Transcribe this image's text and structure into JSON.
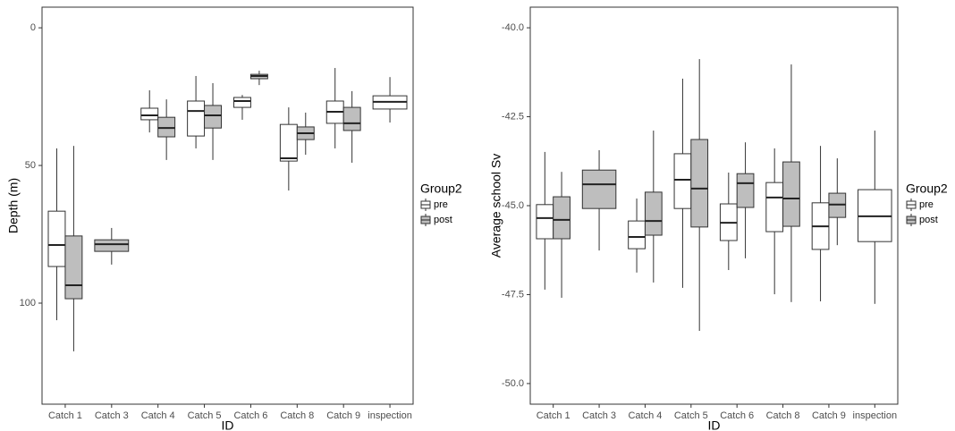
{
  "chart_data": [
    {
      "type": "box",
      "x_label": "ID",
      "y_label": "Depth (m)",
      "y_reversed": true,
      "categories": [
        "Catch 1",
        "Catch 3",
        "Catch 4",
        "Catch 5",
        "Catch 6",
        "Catch 8",
        "Catch 9",
        "inspection"
      ],
      "ylim": [
        -7.5,
        136.7
      ],
      "yticks": [
        0,
        50,
        100
      ],
      "legend_title": "Group2",
      "legend": "right",
      "series": [
        {
          "name": "pre",
          "color": "#ffffff",
          "values": [
            [
              43.8,
              66.6,
              78.9,
              86.7,
              106.2
            ],
            null,
            [
              22.7,
              29.2,
              31.8,
              33.4,
              38
            ],
            [
              17.5,
              26.6,
              30.2,
              39.3,
              43.8
            ],
            [
              24.4,
              25.3,
              26.6,
              28.9,
              33.4
            ],
            [
              28.9,
              35.1,
              47.4,
              48.4,
              59.1
            ],
            [
              14.6,
              26.6,
              30.5,
              34.7,
              43.8
            ],
            [
              17.9,
              24.7,
              26.9,
              29.5,
              34.4
            ]
          ]
        },
        {
          "name": "post",
          "color": "#bebebe",
          "values": [
            [
              42.9,
              75.6,
              93.5,
              98.4,
              117.5
            ],
            [
              72.7,
              77,
              78.6,
              81.2,
              86
            ],
            [
              26,
              32.5,
              36.4,
              39.6,
              48
            ],
            [
              20.1,
              28.2,
              31.8,
              36.4,
              48
            ],
            [
              15.6,
              16.9,
              17.5,
              18.5,
              20.8
            ],
            [
              30.8,
              36,
              38.3,
              40.6,
              46.1
            ],
            [
              23,
              28.9,
              34.7,
              37.3,
              49
            ],
            null
          ]
        }
      ]
    },
    {
      "type": "box",
      "x_label": "ID",
      "y_label": "Average school Sv",
      "y_reversed": false,
      "categories": [
        "Catch 1",
        "Catch 3",
        "Catch 4",
        "Catch 5",
        "Catch 6",
        "Catch 8",
        "Catch 9",
        "inspection"
      ],
      "ylim": [
        -50.58,
        -39.42
      ],
      "yticks": [
        {
          "value": -40,
          "label": "-40.0"
        },
        -42.5,
        {
          "value": -45,
          "label": "-45.0"
        },
        -47.5,
        {
          "value": -50,
          "label": "-50.0"
        }
      ],
      "legend_title": "Group2",
      "legend": "right",
      "series": [
        {
          "name": "pre",
          "color": "#ffffff",
          "values": [
            [
              -47.36,
              -45.93,
              -45.35,
              -44.97,
              -43.49
            ],
            null,
            [
              -46.88,
              -46.21,
              -45.88,
              -45.43,
              -44.8
            ],
            [
              -47.31,
              -45.08,
              -44.27,
              -43.54,
              -41.43
            ],
            [
              -46.81,
              -45.98,
              -45.48,
              -44.95,
              -44.07
            ],
            [
              -47.49,
              -45.73,
              -44.77,
              -44.35,
              -43.39
            ],
            [
              -47.69,
              -46.23,
              -45.58,
              -44.92,
              -43.32
            ],
            [
              -47.76,
              -46.01,
              -45.3,
              -44.55,
              -42.89
            ]
          ]
        },
        {
          "name": "post",
          "color": "#bebebe",
          "values": [
            [
              -47.59,
              -45.93,
              -45.4,
              -44.75,
              -44.05
            ],
            [
              -46.26,
              -45.08,
              -44.4,
              -44.0,
              -43.44
            ],
            [
              -47.16,
              -45.83,
              -45.43,
              -44.62,
              -42.89
            ],
            [
              -48.52,
              -45.6,
              -44.52,
              -43.14,
              -40.88
            ],
            [
              -46.48,
              -45.05,
              -44.37,
              -44.1,
              -43.22
            ],
            [
              -47.71,
              -45.58,
              -44.8,
              -43.77,
              -41.03
            ],
            [
              -46.11,
              -45.33,
              -44.97,
              -44.65,
              -43.67
            ],
            null
          ]
        }
      ]
    }
  ]
}
